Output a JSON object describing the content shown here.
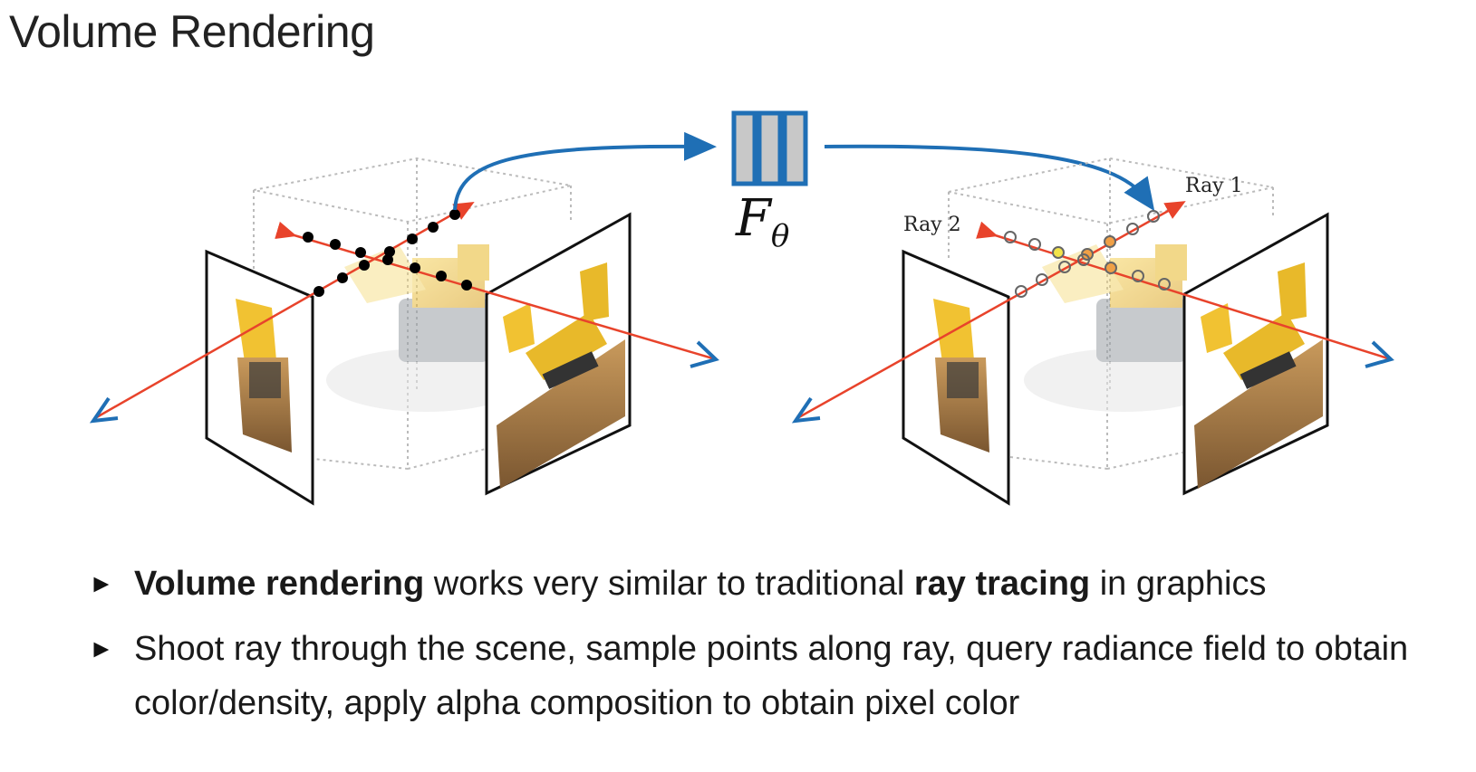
{
  "title": "Volume Rendering",
  "diagram": {
    "network_label": "F",
    "network_subscript": "θ",
    "ray1_label": "Ray 1",
    "ray2_label": "Ray 2"
  },
  "bullets": [
    {
      "marker": "►",
      "parts": [
        {
          "text": "Volume rendering",
          "bold": true
        },
        {
          "text": " works very similar to traditional ",
          "bold": false
        },
        {
          "text": "ray tracing",
          "bold": true
        },
        {
          "text": " in graphics",
          "bold": false
        }
      ]
    },
    {
      "marker": "►",
      "parts": [
        {
          "text": "Shoot ray through the scene, sample points along ray, query radiance field to obtain color/density, apply alpha composition to obtain pixel color",
          "bold": false
        }
      ]
    }
  ],
  "colors": {
    "ray": "#e8432b",
    "camera": "#1f6fb5",
    "network_box": "#1f6fb5",
    "network_fill": "#c8c8c8",
    "sample_left": "#000000",
    "sample_yellow": "#f3e44a",
    "sample_orange": "#f0a046"
  }
}
